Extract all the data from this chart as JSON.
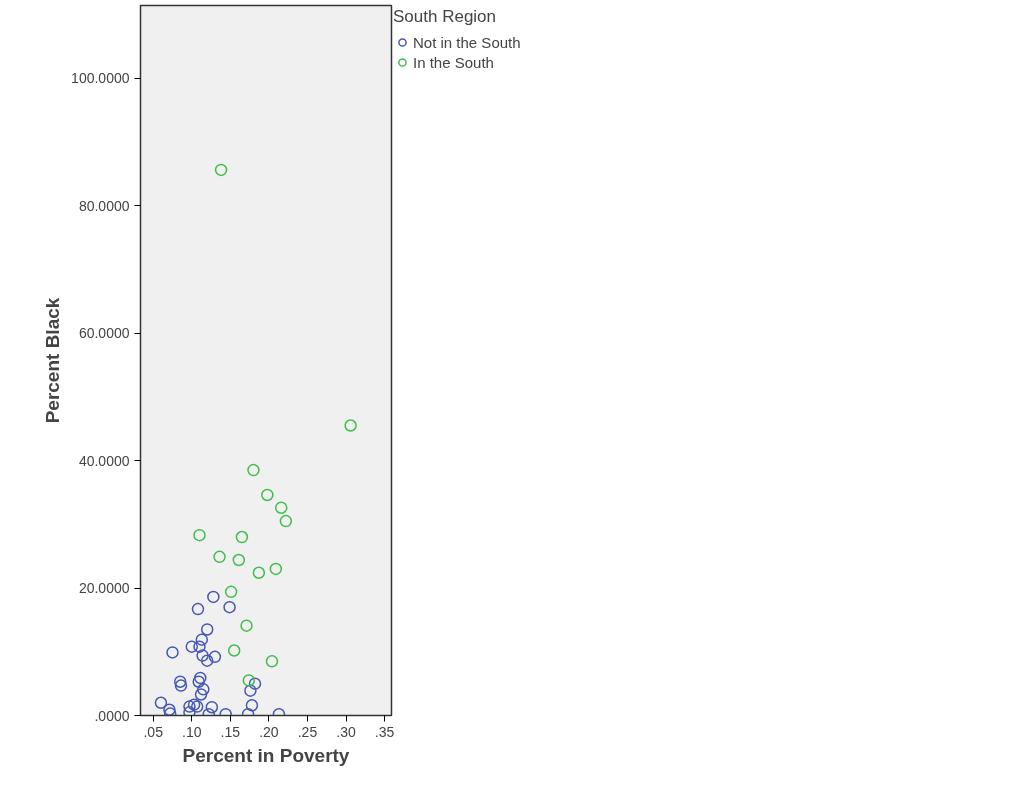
{
  "chart_data": {
    "type": "scatter",
    "xlabel": "Percent in Poverty",
    "ylabel": "Percent Black",
    "legend_title": "South Region",
    "legend": "top right",
    "grid": false,
    "marker": "circle",
    "xlim": [
      0.0335,
      0.359
    ],
    "ylim": [
      0,
      111.4
    ],
    "xticks": [
      {
        "value": 0.05,
        "label": ".05"
      },
      {
        "value": 0.1,
        "label": ".10"
      },
      {
        "value": 0.15,
        "label": ".15"
      },
      {
        "value": 0.2,
        "label": ".20"
      },
      {
        "value": 0.25,
        "label": ".25"
      },
      {
        "value": 0.3,
        "label": ".30"
      },
      {
        "value": 0.35,
        "label": ".35"
      }
    ],
    "yticks": [
      {
        "value": 0,
        "label": ".0000"
      },
      {
        "value": 20,
        "label": "20.0000"
      },
      {
        "value": 40,
        "label": "40.0000"
      },
      {
        "value": 60,
        "label": "60.0000"
      },
      {
        "value": 80,
        "label": "80.0000"
      },
      {
        "value": 100,
        "label": "100.0000"
      }
    ],
    "series": [
      {
        "name": "Not in the South",
        "color": "#4557b5",
        "x": [
          0.128,
          0.108,
          0.149,
          0.12,
          0.113,
          0.1,
          0.11,
          0.075,
          0.114,
          0.12,
          0.13,
          0.085,
          0.086,
          0.111,
          0.109,
          0.115,
          0.112,
          0.176,
          0.182,
          0.06,
          0.071,
          0.072,
          0.097,
          0.097,
          0.103,
          0.107,
          0.126,
          0.122,
          0.144,
          0.178,
          0.173,
          0.213
        ],
        "values": [
          18.6,
          16.7,
          17.0,
          13.5,
          11.9,
          10.8,
          10.8,
          9.9,
          9.4,
          8.6,
          9.2,
          5.3,
          4.7,
          5.9,
          5.3,
          4.1,
          3.3,
          3.9,
          5.0,
          2.0,
          0.9,
          0.3,
          1.4,
          0.5,
          1.7,
          1.4,
          1.3,
          0.2,
          0.2,
          1.6,
          0.2,
          0.2
        ]
      },
      {
        "name": "In the South",
        "color": "#3fbe4a",
        "x": [
          0.138,
          0.306,
          0.18,
          0.198,
          0.216,
          0.222,
          0.11,
          0.165,
          0.136,
          0.161,
          0.187,
          0.209,
          0.151,
          0.171,
          0.155,
          0.204,
          0.174
        ],
        "values": [
          85.6,
          45.5,
          38.5,
          34.6,
          32.6,
          30.5,
          28.3,
          28.0,
          24.9,
          24.4,
          22.4,
          23.0,
          19.4,
          14.1,
          10.2,
          8.5,
          5.5
        ]
      }
    ]
  }
}
